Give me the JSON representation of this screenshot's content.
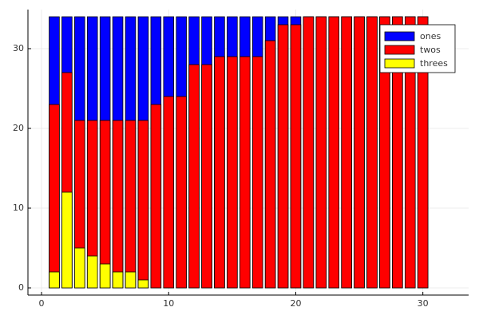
{
  "chart_data": {
    "type": "bar",
    "overlay": true,
    "x": [
      1,
      2,
      3,
      4,
      5,
      6,
      7,
      8,
      9,
      10,
      11,
      12,
      13,
      14,
      15,
      16,
      17,
      18,
      19,
      20,
      21,
      22,
      23,
      24,
      25,
      26,
      27,
      28,
      29,
      30
    ],
    "bar_width": 0.8,
    "series": [
      {
        "name": "ones",
        "color": "#0000ff",
        "values": [
          34,
          34,
          34,
          34,
          34,
          34,
          34,
          34,
          34,
          34,
          34,
          34,
          34,
          34,
          34,
          34,
          34,
          34,
          34,
          34,
          34,
          34,
          34,
          34,
          34,
          34,
          34,
          34,
          34,
          34
        ]
      },
      {
        "name": "twos",
        "color": "#ff0000",
        "values": [
          23,
          27,
          21,
          21,
          21,
          21,
          21,
          21,
          23,
          24,
          24,
          28,
          28,
          29,
          29,
          29,
          29,
          31,
          33,
          33,
          34,
          34,
          34,
          34,
          34,
          34,
          34,
          34,
          34,
          34
        ]
      },
      {
        "name": "threes",
        "color": "#ffff00",
        "values": [
          2,
          12,
          5,
          4,
          3,
          2,
          2,
          1,
          0,
          0,
          0,
          0,
          0,
          0,
          0,
          0,
          0,
          0,
          0,
          0,
          0,
          0,
          0,
          0,
          0,
          0,
          0,
          0,
          0,
          0
        ]
      }
    ],
    "xlim": [
      -1.07,
      33.6
    ],
    "ylim": [
      -0.9,
      34.9
    ],
    "xticks": [
      0,
      10,
      20,
      30
    ],
    "yticks": [
      0,
      10,
      20,
      30
    ],
    "grid": true,
    "legend": "top-right"
  }
}
